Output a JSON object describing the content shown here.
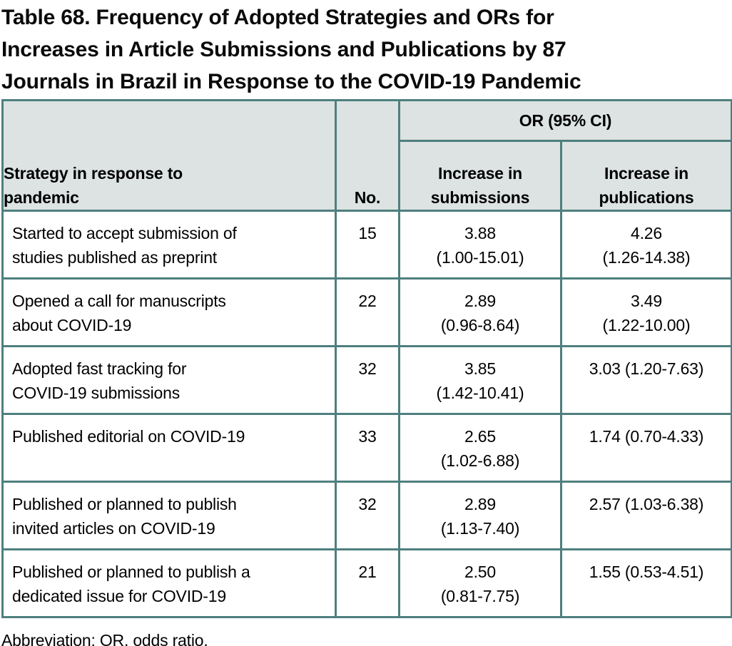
{
  "title_lines": [
    "Table 68. Frequency of Adopted Strategies and ORs for",
    "Increases in Article Submissions and Publications by 87",
    "Journals in Brazil in Response to the COVID-19 Pandemic"
  ],
  "table": {
    "header": {
      "strategy_lines": [
        "Strategy in response to",
        "pandemic"
      ],
      "no_label": "No.",
      "or_group_label": "OR (95% CI)",
      "col_submissions_lines": [
        "Increase in",
        "submissions"
      ],
      "col_publications_lines": [
        "Increase in",
        "publications"
      ]
    },
    "rows": [
      {
        "strategy_lines": [
          "Started to accept submission of",
          "studies published as preprint"
        ],
        "no": "15",
        "submissions_or": "3.88",
        "submissions_ci": "(1.00-15.01)",
        "publications_or": "4.26",
        "publications_ci": "(1.26-14.38)"
      },
      {
        "strategy_lines": [
          "Opened a call for manuscripts",
          "about COVID-19"
        ],
        "no": "22",
        "submissions_or": "2.89",
        "submissions_ci": "(0.96-8.64)",
        "publications_or": "3.49",
        "publications_ci": "(1.22-10.00)"
      },
      {
        "strategy_lines": [
          "Adopted fast tracking for",
          "COVID-19 submissions"
        ],
        "no": "32",
        "submissions_or": "3.85",
        "submissions_ci": "(1.42-10.41)",
        "publications_or": "3.03 (1.20-7.63)",
        "publications_ci": ""
      },
      {
        "strategy_lines": [
          "Published editorial on COVID-19",
          ""
        ],
        "no": "33",
        "submissions_or": "2.65",
        "submissions_ci": "(1.02-6.88)",
        "publications_or": "1.74 (0.70-4.33)",
        "publications_ci": ""
      },
      {
        "strategy_lines": [
          "Published or planned to publish",
          "invited articles on COVID-19"
        ],
        "no": "32",
        "submissions_or": "2.89",
        "submissions_ci": "(1.13-7.40)",
        "publications_or": "2.57 (1.03-6.38)",
        "publications_ci": ""
      },
      {
        "strategy_lines": [
          "Published or planned to publish a",
          "dedicated issue for COVID-19"
        ],
        "no": "21",
        "submissions_or": "2.50",
        "submissions_ci": "(0.81-7.75)",
        "publications_or": "1.55 (0.53-4.51)",
        "publications_ci": ""
      }
    ]
  },
  "footnote": "Abbreviation: OR, odds ratio.",
  "colors": {
    "border": "#4e7f7e",
    "header_bg": "#dce3e2",
    "text": "#000000",
    "body_bg": "#ffffff"
  }
}
